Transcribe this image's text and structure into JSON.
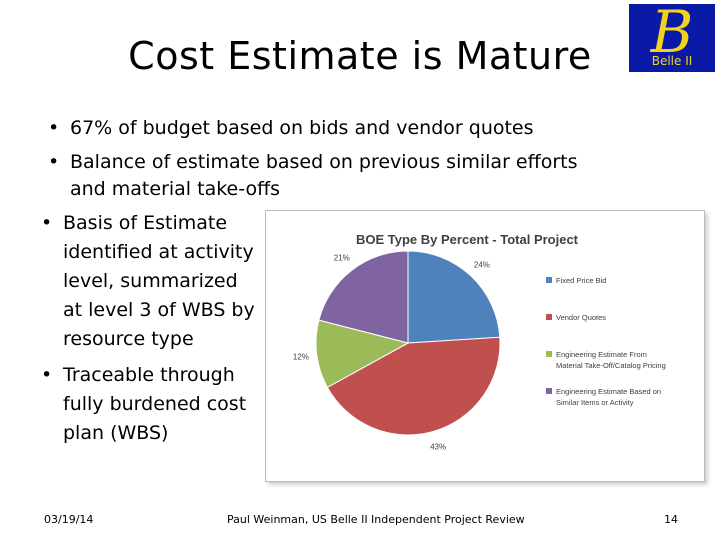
{
  "slide": {
    "title": "Cost Estimate is Mature",
    "logo_text": "B",
    "logo_sub": "Belle II",
    "bullet_char": "•",
    "bullets": [
      {
        "lines": [
          "67% of budget based on bids and vendor quotes"
        ]
      },
      {
        "lines": [
          "Balance of estimate based on previous similar efforts",
          "and material take-offs"
        ]
      },
      {
        "lines": [
          "Basis of Estimate",
          "identified at activity",
          "level, summarized",
          "at level 3 of WBS by",
          "resource type"
        ]
      },
      {
        "lines": [
          "Traceable through",
          "fully burdened cost",
          "plan (WBS)"
        ]
      }
    ],
    "footer": {
      "date": "03/19/14",
      "center": "Paul Weinman, US Belle II Independent Project  Review",
      "page": "14"
    }
  },
  "chart_data": {
    "type": "pie",
    "title": "BOE Type By Percent - Total Project",
    "slices": [
      {
        "label": [
          "Fixed Price Bid"
        ],
        "value": 24,
        "display": "24%",
        "color": "#4f81bd"
      },
      {
        "label": [
          "Vendor Quotes"
        ],
        "value": 43,
        "display": "43%",
        "color": "#c0504d"
      },
      {
        "label": [
          "Engineering Estimate From",
          "Material Take-Off/Catalog Pricing"
        ],
        "value": 12,
        "display": "12%",
        "color": "#9bbb59"
      },
      {
        "label": [
          "Engineering Estimate Based on",
          "Similar Items or Activity"
        ],
        "value": 21,
        "display": "21%",
        "color": "#8064a2"
      }
    ],
    "legend_position": "right"
  }
}
